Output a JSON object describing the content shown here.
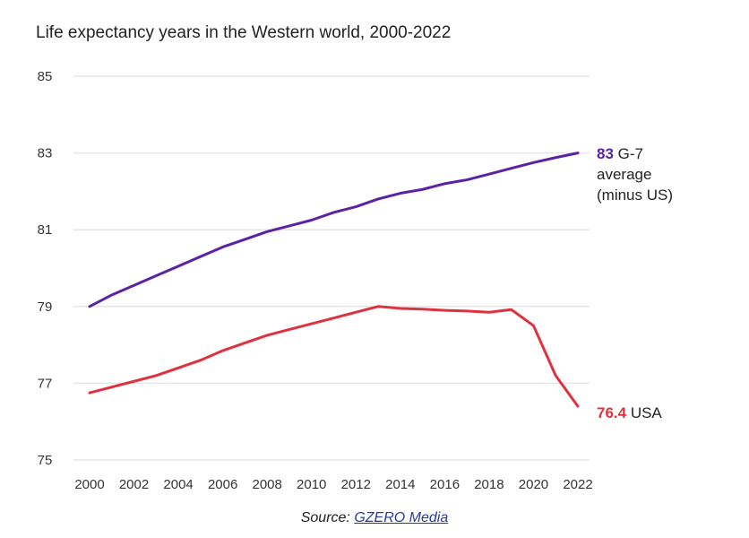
{
  "title": "Life expectancy years in the Western world, 2000-2022",
  "source": {
    "prefix": "Source: ",
    "link_text": "GZERO Media"
  },
  "colors": {
    "g7": "#5b22a6",
    "usa": "#e0313f",
    "grid": "#e6e6e6"
  },
  "end_labels": {
    "g7": {
      "value": "83",
      "text_line1": " G-7",
      "text_line2": "average",
      "text_line3": "(minus US)"
    },
    "usa": {
      "value": "76.4",
      "text": " USA"
    }
  },
  "chart_data": {
    "type": "line",
    "title": "Life expectancy years in the Western world, 2000-2022",
    "xlabel": "",
    "ylabel": "",
    "x": [
      2000,
      2001,
      2002,
      2003,
      2004,
      2005,
      2006,
      2007,
      2008,
      2009,
      2010,
      2011,
      2012,
      2013,
      2014,
      2015,
      2016,
      2017,
      2018,
      2019,
      2020,
      2021,
      2022
    ],
    "xticks": [
      "2000",
      "2002",
      "2004",
      "2006",
      "2008",
      "2010",
      "2012",
      "2014",
      "2016",
      "2018",
      "2020",
      "2022"
    ],
    "yticks": [
      "75",
      "77",
      "79",
      "81",
      "83",
      "85"
    ],
    "ylim": [
      75,
      85
    ],
    "xlim": [
      2000,
      2022
    ],
    "grid": true,
    "legend": "direct labels at line ends (right)",
    "series": [
      {
        "name": "G-7 average (minus US)",
        "color": "#5b22a6",
        "values": [
          79.0,
          79.3,
          79.55,
          79.8,
          80.05,
          80.3,
          80.55,
          80.75,
          80.95,
          81.1,
          81.25,
          81.45,
          81.6,
          81.8,
          81.95,
          82.05,
          82.2,
          82.3,
          82.45,
          82.6,
          82.75,
          82.88,
          83.0
        ]
      },
      {
        "name": "USA",
        "color": "#e0313f",
        "values": [
          76.75,
          76.9,
          77.05,
          77.2,
          77.4,
          77.6,
          77.85,
          78.05,
          78.25,
          78.4,
          78.55,
          78.7,
          78.85,
          79.0,
          78.95,
          78.93,
          78.9,
          78.88,
          78.85,
          78.92,
          78.5,
          77.2,
          76.4
        ]
      }
    ]
  }
}
